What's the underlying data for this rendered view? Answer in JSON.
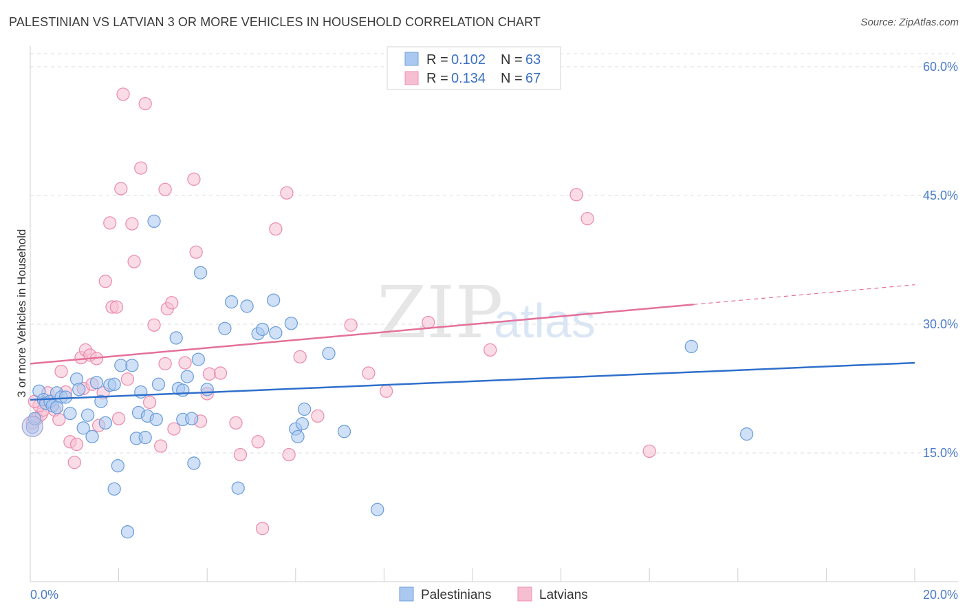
{
  "title": "PALESTINIAN VS LATVIAN 3 OR MORE VEHICLES IN HOUSEHOLD CORRELATION CHART",
  "source": "Source: ZipAtlas.com",
  "watermark": {
    "zip": "ZIP",
    "atlas": "atlas"
  },
  "legend": {
    "r_label": "R =",
    "n_label": "N =",
    "palestinians": {
      "r": "0.102",
      "n": "63"
    },
    "latvians": {
      "r": "0.134",
      "n": "67"
    }
  },
  "colors": {
    "blue_fill": "#aac8f0",
    "blue_stroke": "#6f9fdc",
    "blue_line": "#2f6fcb",
    "pink_fill": "#f6bfd1",
    "pink_stroke": "#ec8fae",
    "pink_line": "#e4709a",
    "tick_text": "#4a7cc9",
    "grid": "#dddddd"
  },
  "chart_data": {
    "type": "scatter",
    "title": "PALESTINIAN VS LATVIAN 3 OR MORE VEHICLES IN HOUSEHOLD CORRELATION CHART",
    "xlabel": "",
    "ylabel": "3 or more Vehicles in Household",
    "xlim": [
      0,
      20
    ],
    "ylim": [
      0,
      63
    ],
    "x_tick_labels": [
      "0.0%",
      "20.0%"
    ],
    "y_ticks": [
      15,
      30,
      45,
      60
    ],
    "y_tick_labels": [
      "15.0%",
      "30.0%",
      "45.0%",
      "60.0%"
    ],
    "grid": true,
    "legend_position": "top-center",
    "series": [
      {
        "name": "Palestinians",
        "r": 0.102,
        "n": 63,
        "trend": {
          "x": [
            0,
            20
          ],
          "y": [
            21.2,
            25.5
          ],
          "dashed_from": null
        },
        "points": [
          [
            0.05,
            18.0
          ],
          [
            0.1,
            19.0
          ],
          [
            0.2,
            22.2
          ],
          [
            0.3,
            21.2
          ],
          [
            0.35,
            20.8
          ],
          [
            0.45,
            21.0
          ],
          [
            0.5,
            20.5
          ],
          [
            0.6,
            22.0
          ],
          [
            0.7,
            21.5
          ],
          [
            0.8,
            21.5
          ],
          [
            0.9,
            19.6
          ],
          [
            1.05,
            23.6
          ],
          [
            1.1,
            22.4
          ],
          [
            1.2,
            17.9
          ],
          [
            1.3,
            19.4
          ],
          [
            1.4,
            16.9
          ],
          [
            1.5,
            23.2
          ],
          [
            1.6,
            21.0
          ],
          [
            1.7,
            18.5
          ],
          [
            1.8,
            22.9
          ],
          [
            1.9,
            23.0
          ],
          [
            1.98,
            13.5
          ],
          [
            1.9,
            10.8
          ],
          [
            2.05,
            25.2
          ],
          [
            2.2,
            5.8
          ],
          [
            2.3,
            25.2
          ],
          [
            2.4,
            16.7
          ],
          [
            2.45,
            19.7
          ],
          [
            2.5,
            22.1
          ],
          [
            2.6,
            16.8
          ],
          [
            2.65,
            19.3
          ],
          [
            2.8,
            42.0
          ],
          [
            2.85,
            18.9
          ],
          [
            2.9,
            23.0
          ],
          [
            3.3,
            28.4
          ],
          [
            3.35,
            22.5
          ],
          [
            3.45,
            22.3
          ],
          [
            3.45,
            18.9
          ],
          [
            3.55,
            23.9
          ],
          [
            3.65,
            19.0
          ],
          [
            3.7,
            13.8
          ],
          [
            3.8,
            25.9
          ],
          [
            3.85,
            36.0
          ],
          [
            4.0,
            22.4
          ],
          [
            4.4,
            29.5
          ],
          [
            4.55,
            32.6
          ],
          [
            4.7,
            10.9
          ],
          [
            4.9,
            32.1
          ],
          [
            5.15,
            28.9
          ],
          [
            5.25,
            29.4
          ],
          [
            5.5,
            32.8
          ],
          [
            5.55,
            29.0
          ],
          [
            5.9,
            30.1
          ],
          [
            6.0,
            17.8
          ],
          [
            6.05,
            16.9
          ],
          [
            6.15,
            18.4
          ],
          [
            6.2,
            20.1
          ],
          [
            6.75,
            26.6
          ],
          [
            7.1,
            17.5
          ],
          [
            7.85,
            8.4
          ],
          [
            14.95,
            27.4
          ],
          [
            16.2,
            17.2
          ],
          [
            0.6,
            20.3
          ]
        ]
      },
      {
        "name": "Latvians",
        "r": 0.134,
        "n": 67,
        "trend": {
          "x": [
            0,
            20
          ],
          "y": [
            25.4,
            34.6
          ],
          "dashed_from": 15
        },
        "points": [
          [
            0.05,
            18.5
          ],
          [
            0.15,
            19.0
          ],
          [
            0.25,
            19.5
          ],
          [
            0.3,
            20.0
          ],
          [
            0.4,
            22.0
          ],
          [
            0.45,
            21.0
          ],
          [
            0.55,
            20.0
          ],
          [
            0.65,
            18.9
          ],
          [
            0.7,
            24.5
          ],
          [
            0.8,
            22.1
          ],
          [
            0.9,
            16.3
          ],
          [
            1.0,
            13.9
          ],
          [
            1.05,
            16.0
          ],
          [
            1.15,
            26.1
          ],
          [
            1.2,
            22.5
          ],
          [
            1.25,
            27.0
          ],
          [
            1.35,
            26.4
          ],
          [
            1.4,
            23.0
          ],
          [
            1.5,
            26.0
          ],
          [
            1.55,
            18.2
          ],
          [
            1.65,
            22.0
          ],
          [
            1.7,
            35.0
          ],
          [
            1.8,
            41.8
          ],
          [
            1.85,
            32.0
          ],
          [
            1.95,
            32.0
          ],
          [
            2.0,
            19.0
          ],
          [
            2.05,
            45.8
          ],
          [
            2.1,
            56.8
          ],
          [
            2.2,
            23.6
          ],
          [
            2.3,
            41.7
          ],
          [
            2.35,
            37.3
          ],
          [
            2.5,
            48.2
          ],
          [
            2.6,
            55.7
          ],
          [
            2.7,
            20.9
          ],
          [
            2.8,
            29.9
          ],
          [
            2.95,
            15.8
          ],
          [
            3.05,
            45.7
          ],
          [
            3.05,
            25.4
          ],
          [
            3.1,
            31.8
          ],
          [
            3.2,
            32.5
          ],
          [
            3.25,
            17.8
          ],
          [
            3.5,
            25.5
          ],
          [
            3.7,
            46.9
          ],
          [
            3.75,
            38.4
          ],
          [
            3.85,
            18.7
          ],
          [
            4.0,
            21.9
          ],
          [
            4.05,
            24.2
          ],
          [
            4.3,
            24.3
          ],
          [
            4.65,
            18.5
          ],
          [
            4.75,
            14.8
          ],
          [
            5.15,
            16.3
          ],
          [
            5.25,
            6.2
          ],
          [
            5.55,
            41.1
          ],
          [
            5.8,
            45.3
          ],
          [
            5.85,
            14.8
          ],
          [
            6.1,
            26.2
          ],
          [
            6.5,
            19.3
          ],
          [
            7.25,
            29.9
          ],
          [
            7.65,
            24.3
          ],
          [
            8.05,
            22.2
          ],
          [
            9.0,
            30.2
          ],
          [
            10.4,
            27.0
          ],
          [
            12.35,
            45.1
          ],
          [
            12.6,
            42.3
          ],
          [
            14.0,
            15.2
          ],
          [
            0.2,
            20.5
          ],
          [
            0.1,
            21.0
          ]
        ]
      }
    ]
  },
  "bottom_legend": [
    "Palestinians",
    "Latvians"
  ]
}
